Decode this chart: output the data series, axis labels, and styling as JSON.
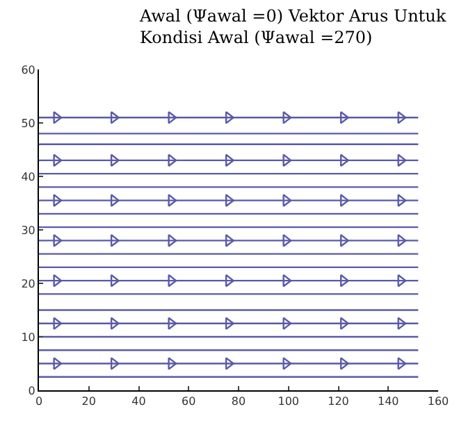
{
  "chart_data": {
    "type": "line",
    "title": "Awal (Ψawal =0) Vektor Arus Untuk\nKondisi Awal (Ψawal =270)",
    "xlim": [
      0,
      160
    ],
    "xticks": [
      0,
      20,
      40,
      60,
      80,
      100,
      120,
      140,
      160
    ],
    "ylim": [
      0,
      60
    ],
    "yticks": [
      0,
      10,
      20,
      30,
      40,
      50,
      60
    ],
    "marker": "none",
    "series": [
      {
        "color": "#5a5aa8",
        "x": [
          0,
          152
        ],
        "values": [
          2.5,
          2.5
        ]
      },
      {
        "color": "#5a5aa8",
        "x": [
          0,
          152
        ],
        "values": [
          5,
          5
        ]
      },
      {
        "color": "#5a5aa8",
        "x": [
          0,
          152
        ],
        "values": [
          7.5,
          7.5
        ]
      },
      {
        "color": "#5a5aa8",
        "x": [
          0,
          152
        ],
        "values": [
          10,
          10
        ]
      },
      {
        "color": "#5a5aa8",
        "x": [
          0,
          152
        ],
        "values": [
          12.5,
          12.5
        ]
      },
      {
        "color": "#5a5aa8",
        "x": [
          0,
          152
        ],
        "values": [
          15,
          15
        ]
      },
      {
        "color": "#5a5aa8",
        "x": [
          0,
          152
        ],
        "values": [
          18,
          18
        ]
      },
      {
        "color": "#5a5aa8",
        "x": [
          0,
          152
        ],
        "values": [
          20.5,
          20.5
        ]
      },
      {
        "color": "#5a5aa8",
        "x": [
          0,
          152
        ],
        "values": [
          23,
          23
        ]
      },
      {
        "color": "#5a5aa8",
        "x": [
          0,
          152
        ],
        "values": [
          25.5,
          25.5
        ]
      },
      {
        "color": "#5a5aa8",
        "x": [
          0,
          152
        ],
        "values": [
          28,
          28
        ]
      },
      {
        "color": "#5a5aa8",
        "x": [
          0,
          152
        ],
        "values": [
          30.5,
          30.5
        ]
      },
      {
        "color": "#5a5aa8",
        "x": [
          0,
          152
        ],
        "values": [
          33,
          33
        ]
      },
      {
        "color": "#5a5aa8",
        "x": [
          0,
          152
        ],
        "values": [
          35.5,
          35.5
        ]
      },
      {
        "color": "#5a5aa8",
        "x": [
          0,
          152
        ],
        "values": [
          38,
          38
        ]
      },
      {
        "color": "#5a5aa8",
        "x": [
          0,
          152
        ],
        "values": [
          40.5,
          40.5
        ]
      },
      {
        "color": "#5a5aa8",
        "x": [
          0,
          152
        ],
        "values": [
          43,
          43
        ]
      },
      {
        "color": "#5a5aa8",
        "x": [
          0,
          152
        ],
        "values": [
          46,
          46
        ]
      },
      {
        "color": "#5a5aa8",
        "x": [
          0,
          152
        ],
        "values": [
          48,
          48
        ]
      },
      {
        "color": "#5a5aa8",
        "x": [
          0,
          152
        ],
        "values": [
          51,
          51
        ]
      },
      {
        "type": "scatter",
        "marker": "triangle",
        "color": "#5a5aa8",
        "x": [
          7,
          30,
          53,
          76,
          99,
          122,
          145,
          7,
          30,
          53,
          76,
          99,
          122,
          145,
          7,
          30,
          53,
          76,
          99,
          122,
          145,
          7,
          30,
          53,
          76,
          99,
          122,
          145,
          7,
          30,
          53,
          76,
          99,
          122,
          145,
          7,
          30,
          53,
          76,
          99,
          122,
          145,
          7,
          30,
          53,
          76,
          99,
          122,
          145
        ],
        "values": [
          5,
          5,
          5,
          5,
          5,
          5,
          5,
          12.5,
          12.5,
          12.5,
          12.5,
          12.5,
          12.5,
          12.5,
          20.5,
          20.5,
          20.5,
          20.5,
          20.5,
          20.5,
          20.5,
          28,
          28,
          28,
          28,
          28,
          28,
          28,
          35.5,
          35.5,
          35.5,
          35.5,
          35.5,
          35.5,
          35.5,
          43,
          43,
          43,
          43,
          43,
          43,
          43,
          51,
          51,
          51,
          51,
          51,
          51,
          51
        ]
      }
    ]
  }
}
